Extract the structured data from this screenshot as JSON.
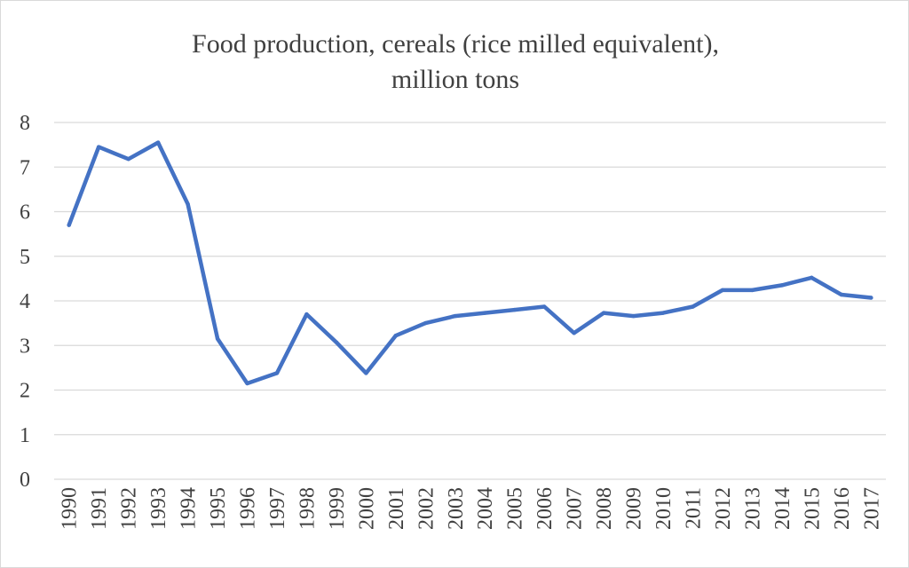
{
  "chart_data": {
    "type": "line",
    "title": "Food production, cereals (rice milled equivalent),",
    "subtitle": "million tons",
    "xlabel": "",
    "ylabel": "",
    "ylim": [
      0,
      8
    ],
    "yticks": [
      "0",
      "1",
      "2",
      "3",
      "4",
      "5",
      "6",
      "7",
      "8"
    ],
    "grid": true,
    "legend": "none",
    "line_color": "#4472c4",
    "categories": [
      "1990",
      "1991",
      "1992",
      "1993",
      "1994",
      "1995",
      "1996",
      "1997",
      "1998",
      "1999",
      "2000",
      "2001",
      "2002",
      "2003",
      "2004",
      "2005",
      "2006",
      "2007",
      "2008",
      "2009",
      "2010",
      "2011",
      "2012",
      "2013",
      "2014",
      "2015",
      "2016",
      "2017"
    ],
    "series": [
      {
        "values": [
          5.7,
          7.45,
          7.18,
          7.55,
          6.17,
          3.15,
          2.15,
          2.38,
          3.7,
          3.07,
          2.38,
          3.22,
          3.5,
          3.66,
          3.73,
          3.8,
          3.87,
          3.28,
          3.73,
          3.66,
          3.73,
          3.87,
          4.24,
          4.24,
          4.35,
          4.52,
          4.14,
          4.07
        ]
      }
    ]
  }
}
